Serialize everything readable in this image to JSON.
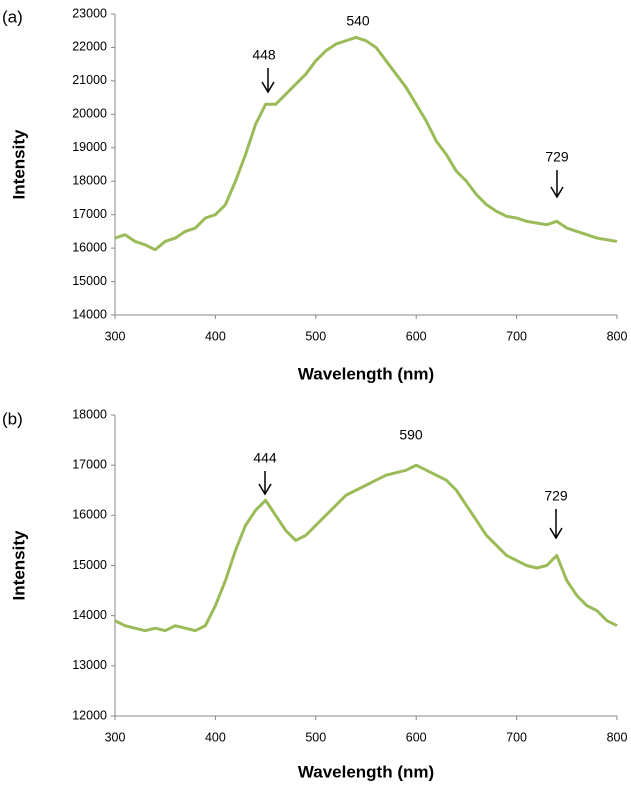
{
  "chart_data": [
    {
      "type": "line",
      "panel_label": "(a)",
      "x_label": "Wavelength (nm)",
      "y_label": "Intensity",
      "x": [
        300,
        310,
        320,
        330,
        340,
        350,
        360,
        370,
        380,
        390,
        400,
        410,
        420,
        430,
        440,
        450,
        460,
        470,
        480,
        490,
        500,
        510,
        520,
        530,
        540,
        550,
        560,
        570,
        580,
        590,
        600,
        610,
        620,
        630,
        640,
        650,
        660,
        670,
        680,
        690,
        700,
        710,
        720,
        730,
        740,
        750,
        760,
        770,
        780,
        790,
        800
      ],
      "series": [
        {
          "color": "#9bbb59",
          "values": [
            16300,
            16400,
            16200,
            16100,
            15950,
            16200,
            16300,
            16500,
            16600,
            16900,
            17000,
            17300,
            18000,
            18800,
            19700,
            20300,
            20300,
            20600,
            20900,
            21200,
            21600,
            21900,
            22100,
            22200,
            22300,
            22200,
            22000,
            21600,
            21200,
            20800,
            20300,
            19800,
            19200,
            18800,
            18300,
            18000,
            17600,
            17300,
            17100,
            16950,
            16900,
            16800,
            16750,
            16700,
            16800,
            16600,
            16500,
            16400,
            16300,
            16250,
            16200
          ]
        }
      ],
      "xlim": [
        300,
        800
      ],
      "xticks": [
        300,
        400,
        500,
        600,
        700,
        800
      ],
      "ylim": [
        14000,
        23000
      ],
      "yticks": [
        14000,
        15000,
        16000,
        17000,
        18000,
        19000,
        20000,
        21000,
        22000,
        23000
      ],
      "grid": false,
      "annotations": [
        {
          "text": "448"
        },
        {
          "text": "540"
        },
        {
          "text": "729"
        }
      ]
    },
    {
      "type": "line",
      "panel_label": "(b)",
      "x_label": "Wavelength (nm)",
      "y_label": "Intensity",
      "x": [
        300,
        310,
        320,
        330,
        340,
        350,
        360,
        370,
        380,
        390,
        400,
        410,
        420,
        430,
        440,
        450,
        460,
        470,
        480,
        490,
        500,
        510,
        520,
        530,
        540,
        550,
        560,
        570,
        580,
        590,
        600,
        610,
        620,
        630,
        640,
        650,
        660,
        670,
        680,
        690,
        700,
        710,
        720,
        730,
        740,
        750,
        760,
        770,
        780,
        790,
        800
      ],
      "series": [
        {
          "color": "#9bbb59",
          "values": [
            13900,
            13800,
            13750,
            13700,
            13750,
            13700,
            13800,
            13750,
            13700,
            13800,
            14200,
            14700,
            15300,
            15800,
            16100,
            16300,
            16000,
            15700,
            15500,
            15600,
            15800,
            16000,
            16200,
            16400,
            16500,
            16600,
            16700,
            16800,
            16850,
            16900,
            17000,
            16900,
            16800,
            16700,
            16500,
            16200,
            15900,
            15600,
            15400,
            15200,
            15100,
            15000,
            14950,
            15000,
            15200,
            14700,
            14400,
            14200,
            14100,
            13900,
            13800
          ]
        }
      ],
      "xlim": [
        300,
        800
      ],
      "xticks": [
        300,
        400,
        500,
        600,
        700,
        800
      ],
      "ylim": [
        12000,
        18000
      ],
      "yticks": [
        12000,
        13000,
        14000,
        15000,
        16000,
        17000,
        18000
      ],
      "grid": false,
      "annotations": [
        {
          "text": "444"
        },
        {
          "text": "590"
        },
        {
          "text": "729"
        }
      ]
    }
  ]
}
